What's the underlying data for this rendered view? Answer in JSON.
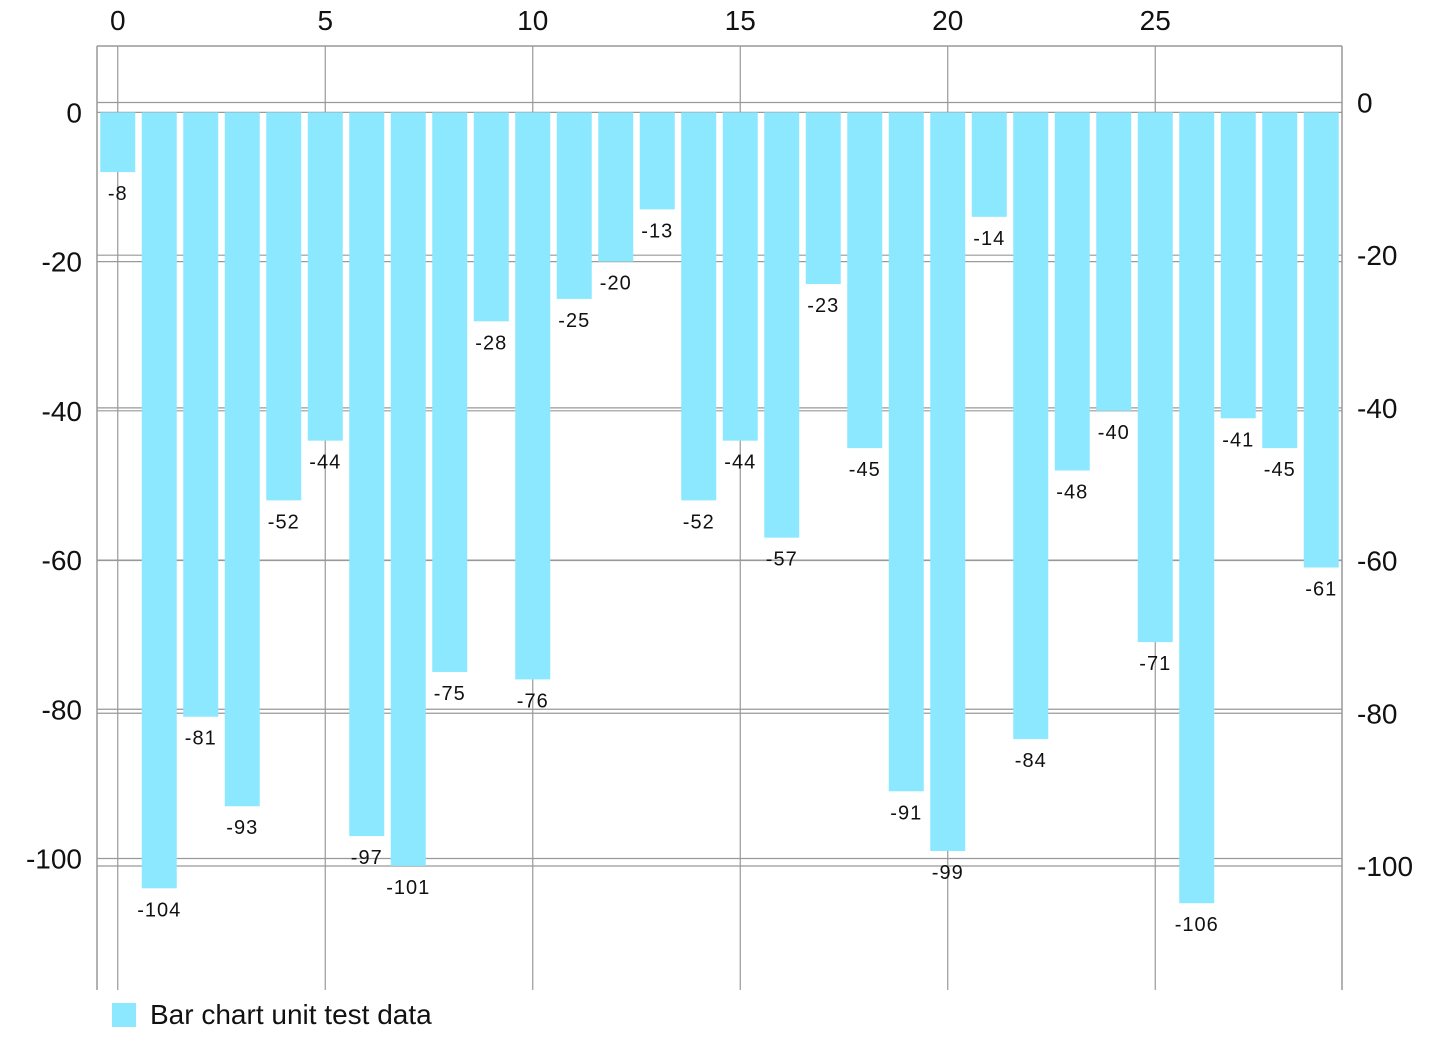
{
  "chart_data": {
    "type": "bar",
    "title": "",
    "xlabel": "",
    "ylabel": "",
    "x": [
      0,
      1,
      2,
      3,
      4,
      5,
      6,
      7,
      8,
      9,
      10,
      11,
      12,
      13,
      14,
      15,
      16,
      17,
      18,
      19,
      20,
      21,
      22,
      23,
      24,
      25,
      26,
      27,
      28,
      29
    ],
    "series": [
      {
        "name": "Bar chart unit test data",
        "values": [
          -8,
          -104,
          -81,
          -93,
          -52,
          -44,
          -97,
          -101,
          -75,
          -28,
          -76,
          -25,
          -20,
          -13,
          -52,
          -44,
          -57,
          -23,
          -45,
          -91,
          -99,
          -14,
          -84,
          -48,
          -40,
          -71,
          -106,
          -41,
          -45,
          -61
        ]
      }
    ],
    "x_axis": {
      "position": "top",
      "range": [
        -0.5,
        29.5
      ],
      "ticks": [
        "0",
        "5",
        "10",
        "15",
        "20",
        "25"
      ],
      "tick_values": [
        0,
        5,
        10,
        15,
        20,
        25
      ]
    },
    "y_axis_left": {
      "range": [
        -118.3,
        8.9
      ],
      "ticks": [
        "0",
        "-20",
        "-40",
        "-60",
        "-80",
        "-100"
      ],
      "tick_values": [
        0,
        -20,
        -40,
        -60,
        -80,
        -100
      ]
    },
    "y_axis_right": {
      "range": [
        -116.9,
        7.4
      ],
      "ticks": [
        "0",
        "-20",
        "-40",
        "-60",
        "-80",
        "-100"
      ],
      "tick_values": [
        0,
        -20,
        -40,
        -60,
        -80,
        -100
      ]
    },
    "grid": true,
    "legend": {
      "position": "bottom-left",
      "label": "Bar chart unit test data"
    },
    "colors": {
      "bar": "#8BE8FE",
      "grid": "#999999",
      "text": "#111111"
    }
  }
}
